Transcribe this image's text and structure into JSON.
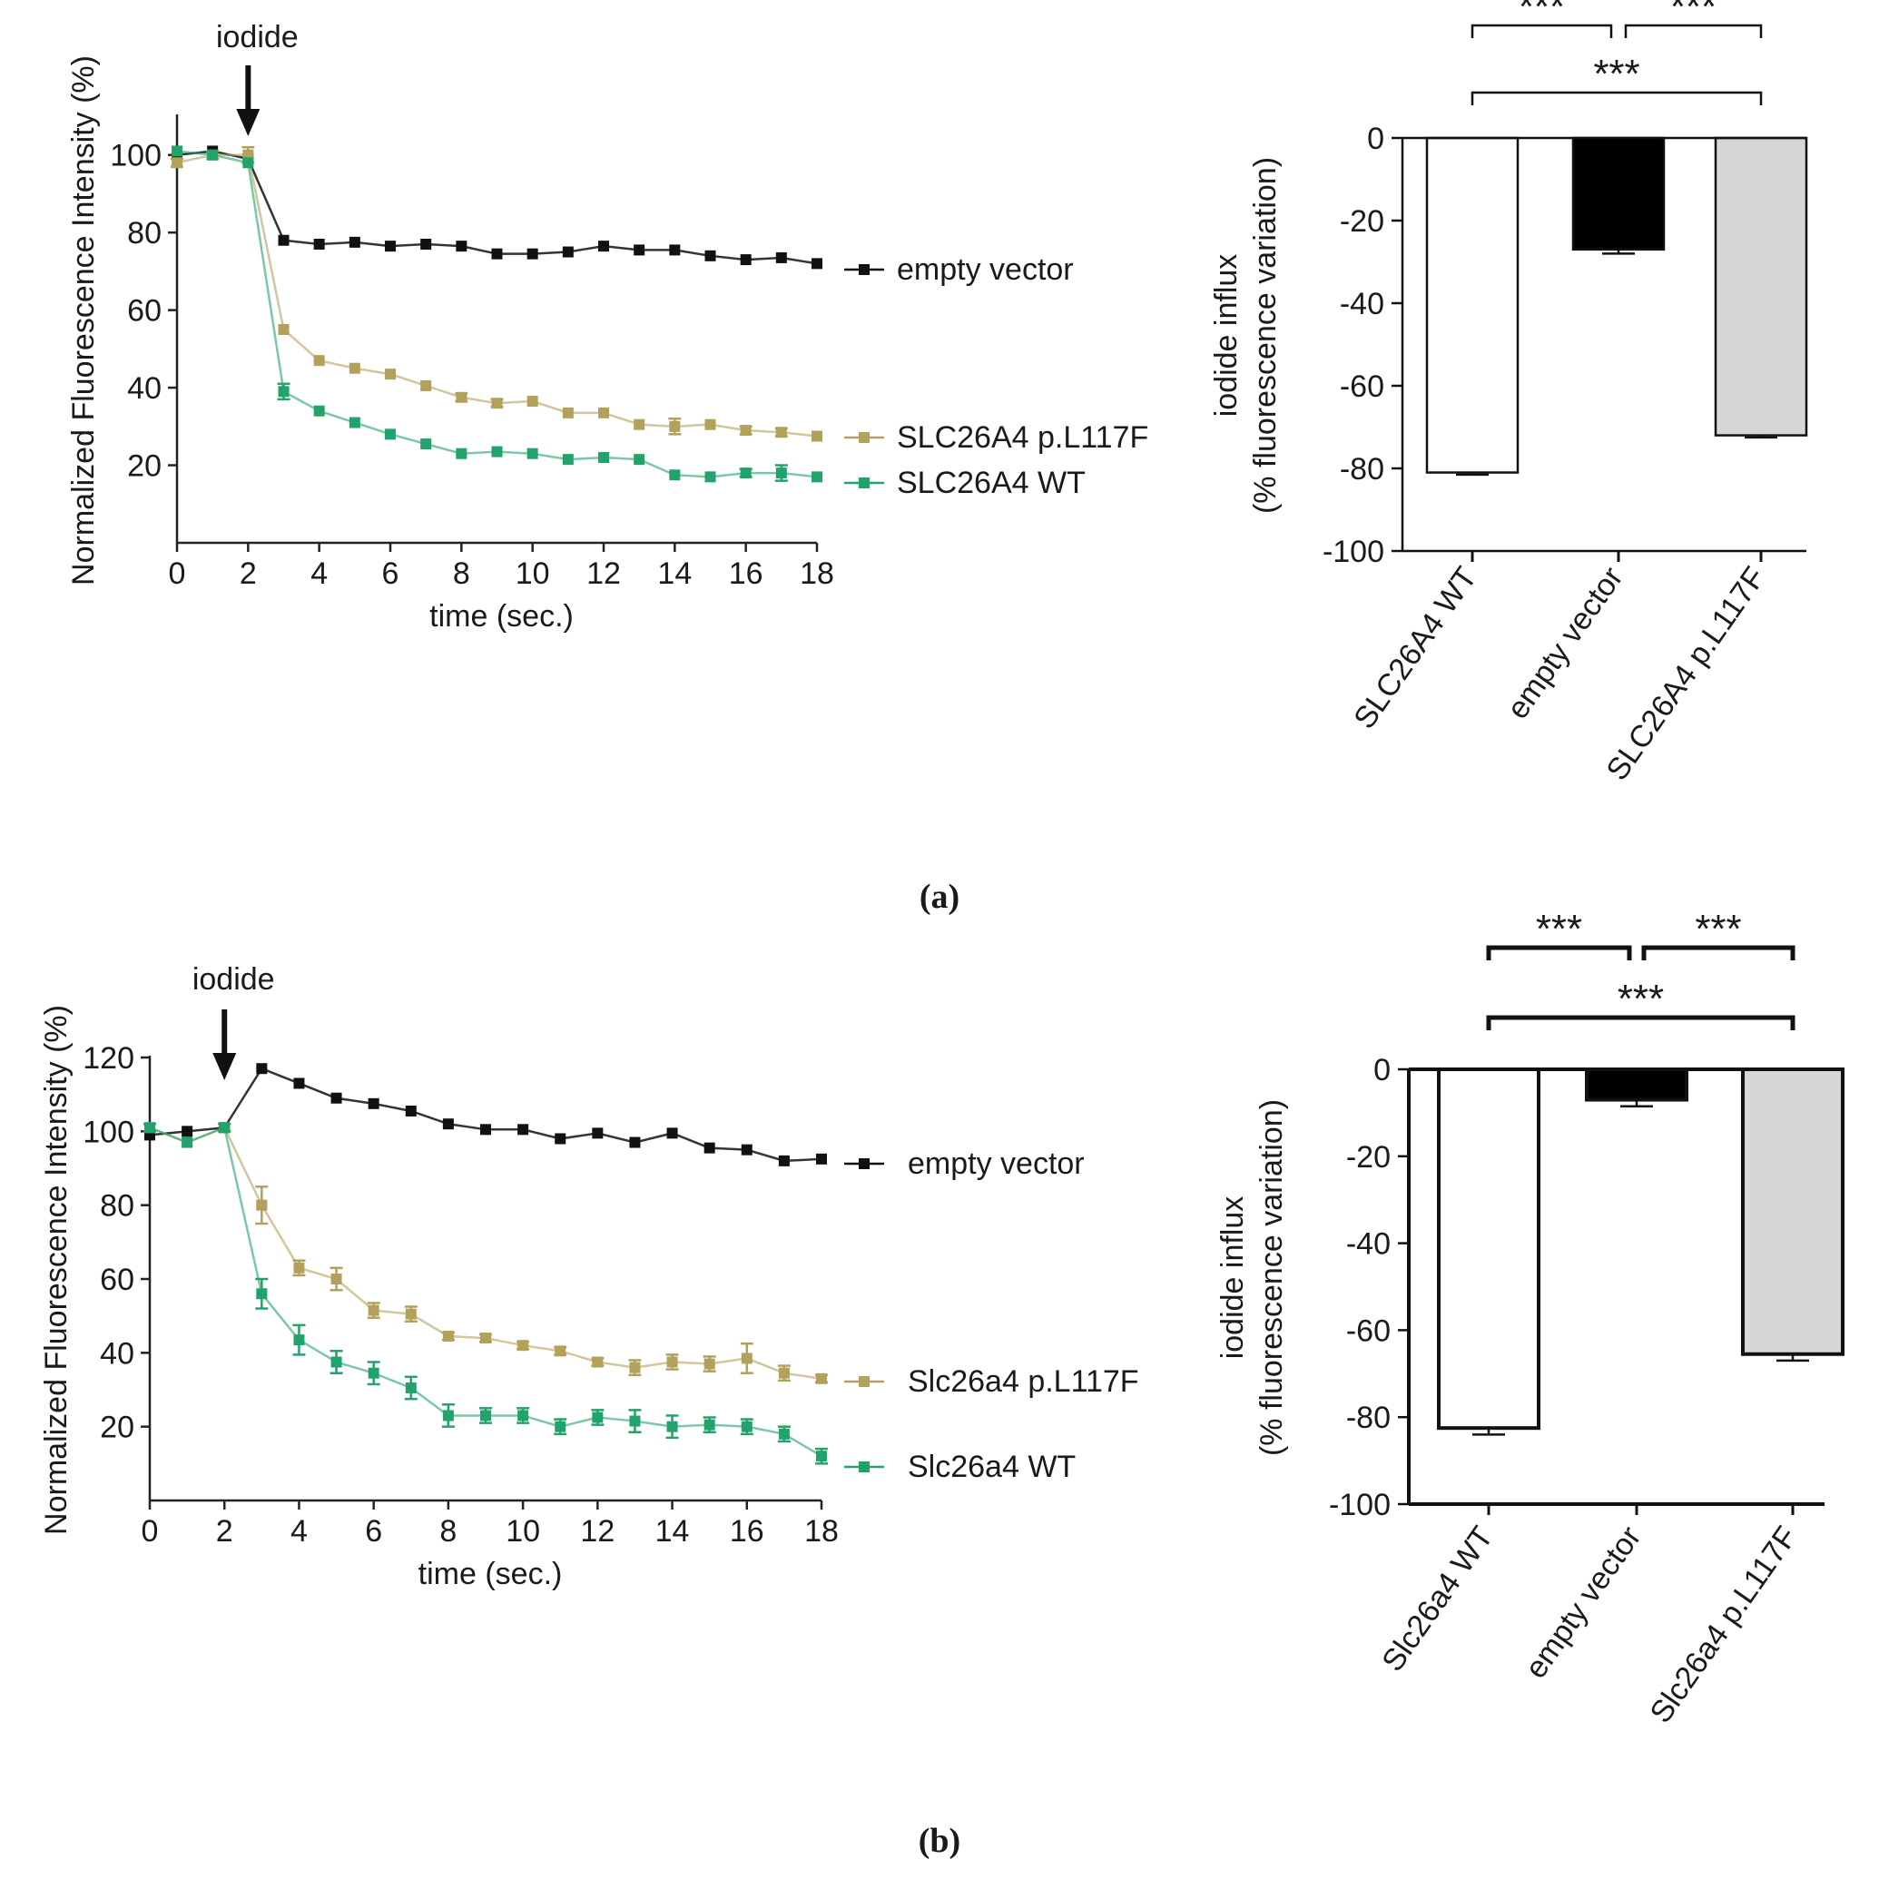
{
  "colors": {
    "empty": "#111111",
    "mut": "#b3a05a",
    "wt": "#22a36b",
    "bar_wt": "#ffffff",
    "bar_empty": "#000000",
    "bar_mut": "#d6d6d6"
  },
  "panels": [
    {
      "label": "(a)",
      "line": {
        "type": "line",
        "annotation": "iodide",
        "annotation_x": 2,
        "xlabel": "time (sec.)",
        "ylabel": "Normalized Fluorescence Intensity (%)",
        "xlim": [
          0,
          18
        ],
        "ylim": [
          0,
          110
        ],
        "xticks": [
          0,
          2,
          4,
          6,
          8,
          10,
          12,
          14,
          16,
          18
        ],
        "xtick_labels": [
          "0",
          "2",
          "4",
          "6",
          "8",
          "10",
          "12",
          "14",
          "16",
          "18"
        ],
        "yticks": [
          20,
          40,
          60,
          80,
          100
        ],
        "ytick_labels": [
          "20",
          "40",
          "60",
          "80",
          "100"
        ],
        "x": [
          0,
          1,
          2,
          3,
          4,
          5,
          6,
          7,
          8,
          9,
          10,
          11,
          12,
          13,
          14,
          15,
          16,
          17,
          18
        ],
        "series": [
          {
            "name": "empty vector",
            "color": "#111111",
            "values": [
              100,
              101,
              99,
              78,
              77,
              77.5,
              76.5,
              77,
              76.5,
              74.5,
              74.5,
              75,
              76.5,
              75.5,
              75.5,
              74,
              73,
              73.5,
              72
            ],
            "errors": [
              0,
              0,
              0,
              0,
              0,
              0,
              0,
              0,
              0,
              0,
              0,
              0,
              0,
              0,
              0,
              0,
              0,
              0,
              0
            ]
          },
          {
            "name": "SLC26A4 p.L117F",
            "color": "#b3a05a",
            "values": [
              98,
              100,
              100,
              55,
              47,
              45,
              43.5,
              40.5,
              37.5,
              36,
              36.5,
              33.5,
              33.5,
              30.5,
              30,
              30.5,
              29,
              28.5,
              27.5
            ],
            "errors": [
              1,
              1,
              2,
              0,
              0,
              0,
              0,
              0,
              1,
              1,
              0,
              0,
              0,
              0,
              2,
              0,
              1,
              1,
              0
            ]
          },
          {
            "name": "SLC26A4 WT",
            "color": "#22a36b",
            "values": [
              101,
              100,
              98,
              39,
              34,
              31,
              28,
              25.5,
              23,
              23.5,
              23,
              21.5,
              22,
              21.5,
              17.5,
              17,
              18,
              18,
              17
            ],
            "errors": [
              0,
              0,
              0,
              2,
              0,
              0,
              0,
              0,
              0,
              0,
              0,
              0,
              0,
              0,
              0,
              0,
              1,
              2,
              0
            ]
          }
        ]
      },
      "bar": {
        "type": "bar",
        "ylabel_line1": "iodide influx",
        "ylabel_line2": "(% fluorescence variation)",
        "ylim": [
          -100,
          0
        ],
        "yticks": [
          0,
          -20,
          -40,
          -60,
          -80,
          -100
        ],
        "ytick_labels": [
          "0",
          "-20",
          "-40",
          "-60",
          "-80",
          "-100"
        ],
        "categories": [
          "SLC26A4 WT",
          "empty vector",
          "SLC26A4 p.L117F"
        ],
        "values": [
          -81,
          -27,
          -72
        ],
        "errors": [
          0.5,
          1,
          0.5
        ],
        "significance": [
          {
            "from": 0,
            "to": 1,
            "label": "***"
          },
          {
            "from": 1,
            "to": 2,
            "label": "***"
          },
          {
            "from": 0,
            "to": 2,
            "label": "***"
          }
        ]
      }
    },
    {
      "label": "(b)",
      "line": {
        "type": "line",
        "annotation": "iodide",
        "annotation_x": 2,
        "xlabel": "time (sec.)",
        "ylabel": "Normalized Fluorescence Intensity (%)",
        "xlim": [
          0,
          18
        ],
        "ylim": [
          0,
          120
        ],
        "xticks": [
          0,
          2,
          4,
          6,
          8,
          10,
          12,
          14,
          16,
          18
        ],
        "xtick_labels": [
          "0",
          "2",
          "4",
          "6",
          "8",
          "10",
          "12",
          "14",
          "16",
          "18"
        ],
        "yticks": [
          20,
          40,
          60,
          80,
          100,
          120
        ],
        "ytick_labels": [
          "20",
          "40",
          "60",
          "80",
          "100",
          "120"
        ],
        "x": [
          0,
          1,
          2,
          3,
          4,
          5,
          6,
          7,
          8,
          9,
          10,
          11,
          12,
          13,
          14,
          15,
          16,
          17,
          18
        ],
        "series": [
          {
            "name": "empty vector",
            "color": "#111111",
            "values": [
              99,
              100,
              101,
              117,
              113,
              109,
              107.5,
              105.5,
              102,
              100.5,
              100.5,
              98,
              99.5,
              97,
              99.5,
              95.5,
              95,
              92,
              92.5
            ],
            "errors": [
              0,
              0,
              0,
              0,
              0,
              0,
              0,
              0,
              0,
              0,
              0,
              0,
              0,
              0,
              0,
              0,
              0,
              0,
              0
            ]
          },
          {
            "name": "Slc26a4 p.L117F",
            "color": "#b3a05a",
            "values": [
              101,
              97,
              101,
              80,
              63,
              60,
              51.5,
              50.5,
              44.5,
              44,
              42,
              40.5,
              37.5,
              36,
              37.5,
              37,
              38.5,
              34.5,
              33
            ],
            "errors": [
              1,
              0,
              1,
              5,
              2,
              3,
              2,
              2,
              1,
              1,
              1,
              1,
              1,
              2,
              2,
              2,
              4,
              2,
              1
            ]
          },
          {
            "name": "Slc26a4 WT",
            "color": "#22a36b",
            "values": [
              101,
              97,
              101,
              56,
              43.5,
              37.5,
              34.5,
              30.5,
              23,
              23,
              23,
              20,
              22.5,
              21.5,
              20,
              20.5,
              20,
              18,
              12
            ],
            "errors": [
              1,
              0,
              1,
              4,
              4,
              3,
              3,
              3,
              3,
              2,
              2,
              2,
              2,
              3,
              3,
              2,
              2,
              2,
              2
            ]
          }
        ]
      },
      "bar": {
        "type": "bar",
        "ylabel_line1": "iodide influx",
        "ylabel_line2": "(% fluorescence variation)",
        "ylim": [
          -100,
          0
        ],
        "yticks": [
          0,
          -20,
          -40,
          -60,
          -80,
          -100
        ],
        "ytick_labels": [
          "0",
          "-20",
          "-40",
          "-60",
          "-80",
          "-100"
        ],
        "categories": [
          "Slc26a4 WT",
          "empty vector",
          "Slc26a4 p.L117F"
        ],
        "values": [
          -82.5,
          -7,
          -65.5
        ],
        "errors": [
          1.5,
          1.5,
          1.5
        ],
        "significance": [
          {
            "from": 0,
            "to": 1,
            "label": "***"
          },
          {
            "from": 1,
            "to": 2,
            "label": "***"
          },
          {
            "from": 0,
            "to": 2,
            "label": "***"
          }
        ]
      }
    }
  ]
}
